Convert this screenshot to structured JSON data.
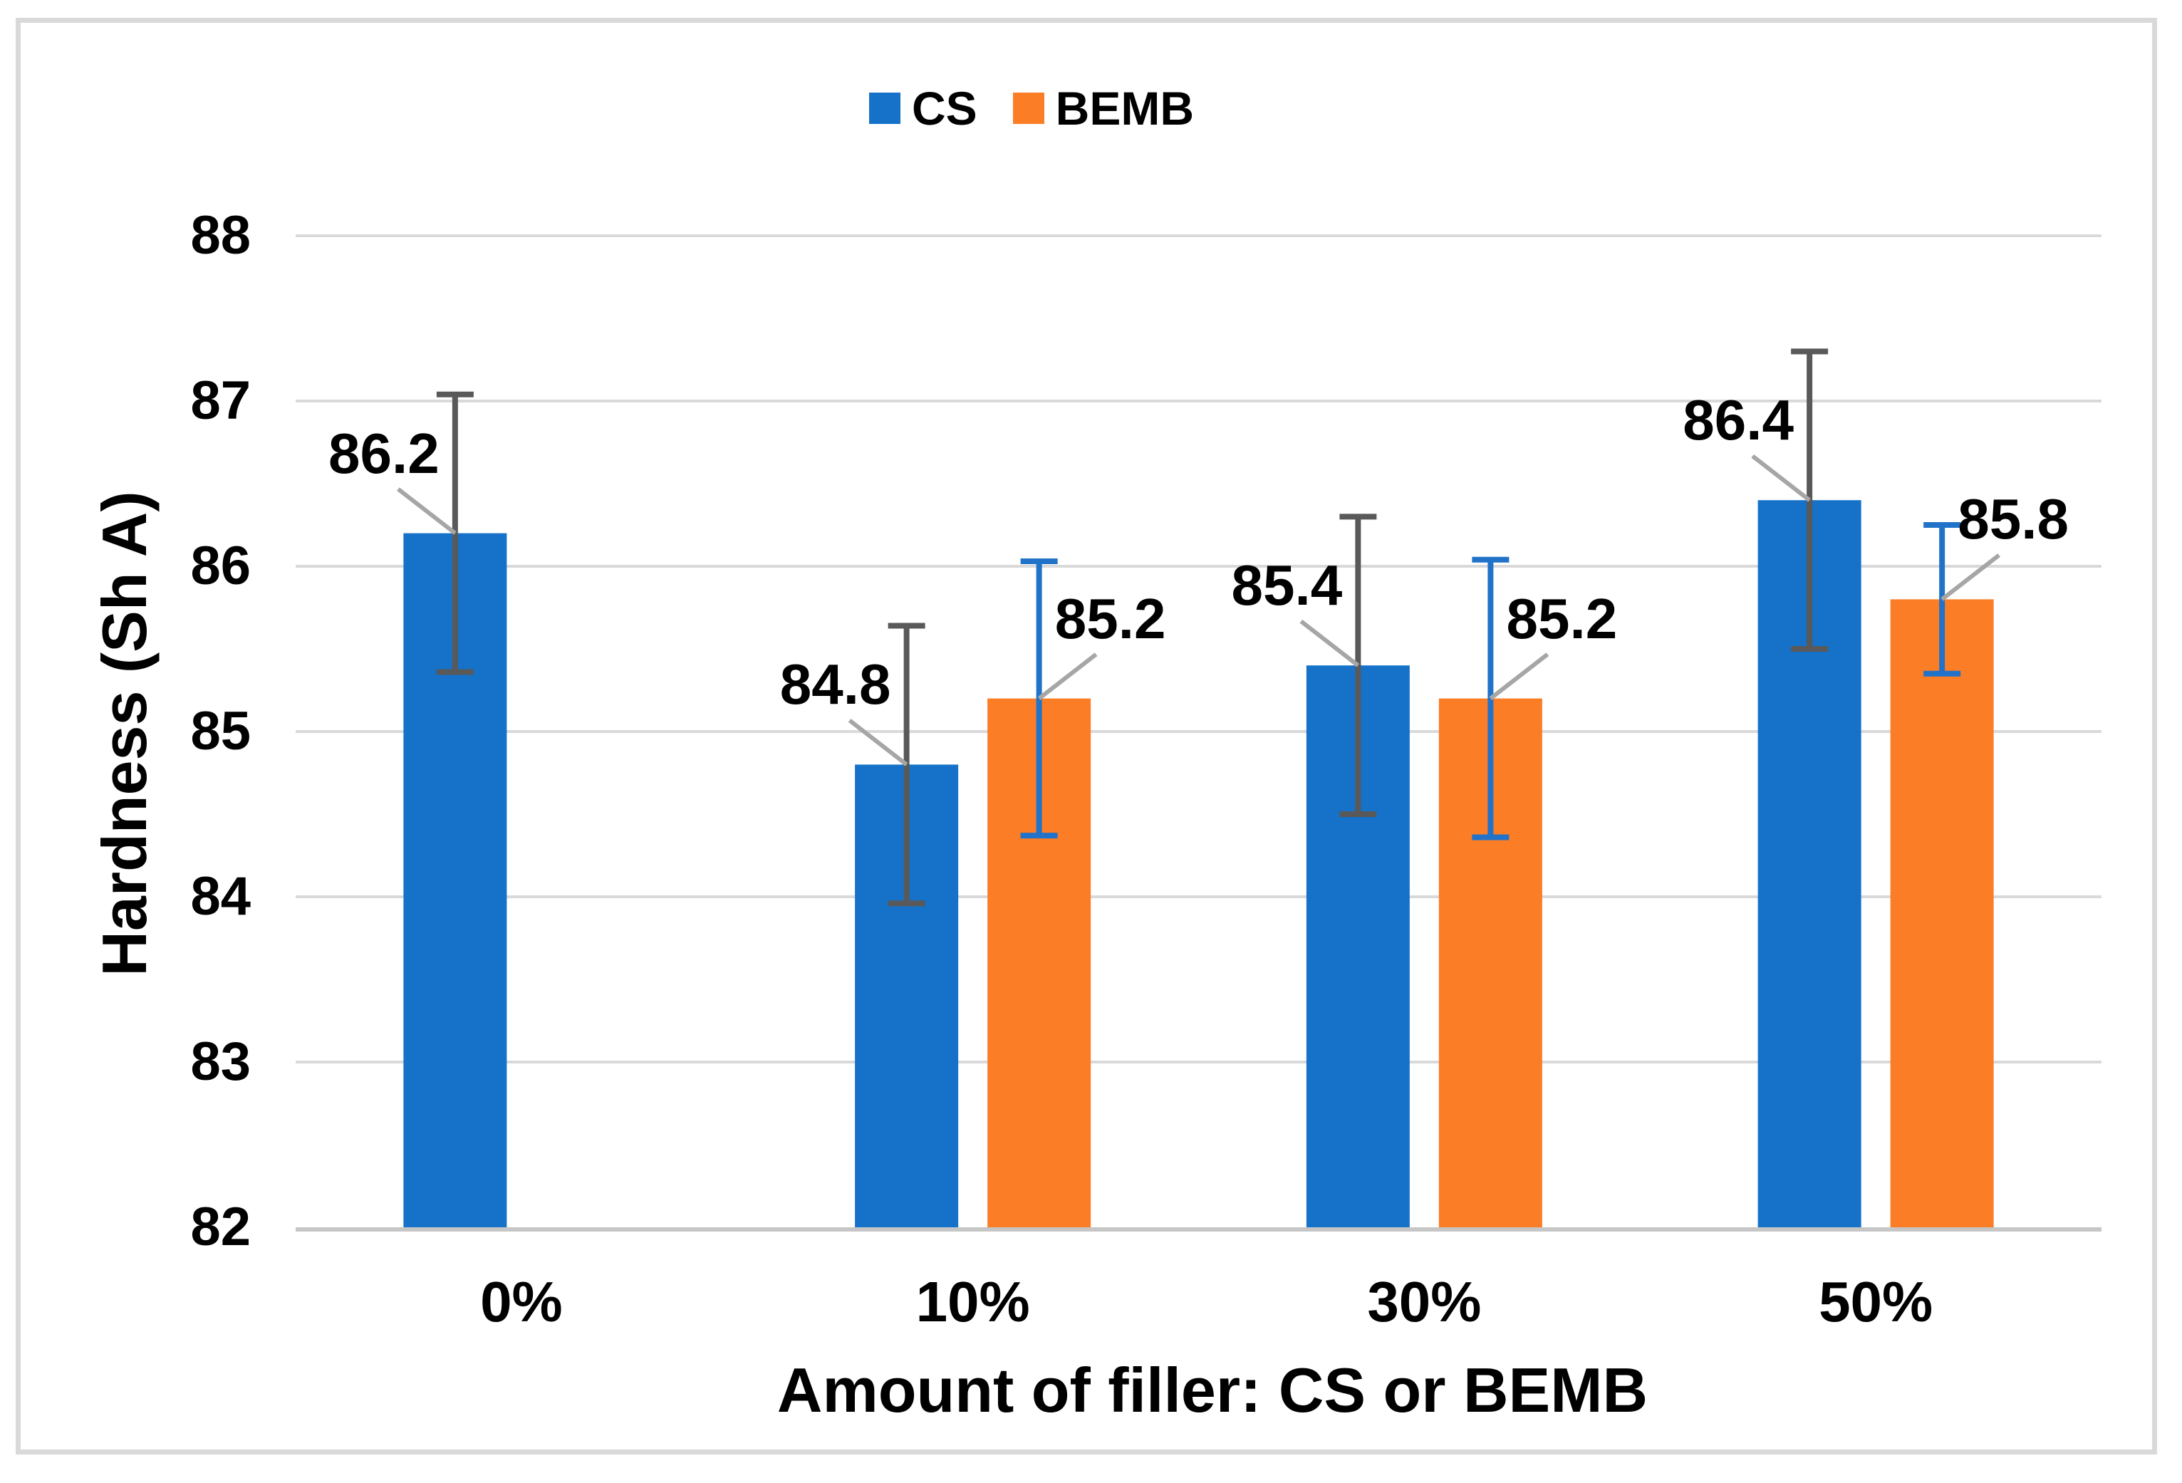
{
  "figure": {
    "background": "#FFFFFF",
    "border_color": "#D9D9D9"
  },
  "chart_data": {
    "type": "bar",
    "title": "",
    "xlabel": "Amount of filler: CS or BEMB",
    "ylabel": "Hardness (Sh A)",
    "categories": [
      "0%",
      "10%",
      "30%",
      "50%"
    ],
    "series": [
      {
        "name": "CS",
        "color": "#1572C8",
        "error_bar_color": "#595959",
        "data_label_side": "left",
        "values": [
          86.2,
          84.8,
          85.4,
          86.4
        ],
        "errors": [
          0.84,
          0.84,
          0.9,
          0.9
        ],
        "data_labels": [
          "86.2",
          "84.8",
          "85.4",
          "86.4"
        ]
      },
      {
        "name": "BEMB",
        "color": "#FB7D26",
        "error_bar_color": "#2173C9",
        "data_label_side": "right",
        "values": [
          null,
          85.2,
          85.2,
          85.8
        ],
        "errors": [
          null,
          0.83,
          0.84,
          0.45
        ],
        "data_labels": [
          null,
          "85.2",
          "85.2",
          "85.8"
        ]
      }
    ],
    "ylim": [
      82,
      88
    ],
    "yticks": [
      82,
      83,
      84,
      85,
      86,
      87,
      88
    ],
    "grid": true,
    "gridline_color": "#D9D9D9",
    "axis_line_color": "#C6C6C6",
    "leader_line_color": "#A6A6A6",
    "text_color": "#000000",
    "legend_position": "top-center"
  }
}
